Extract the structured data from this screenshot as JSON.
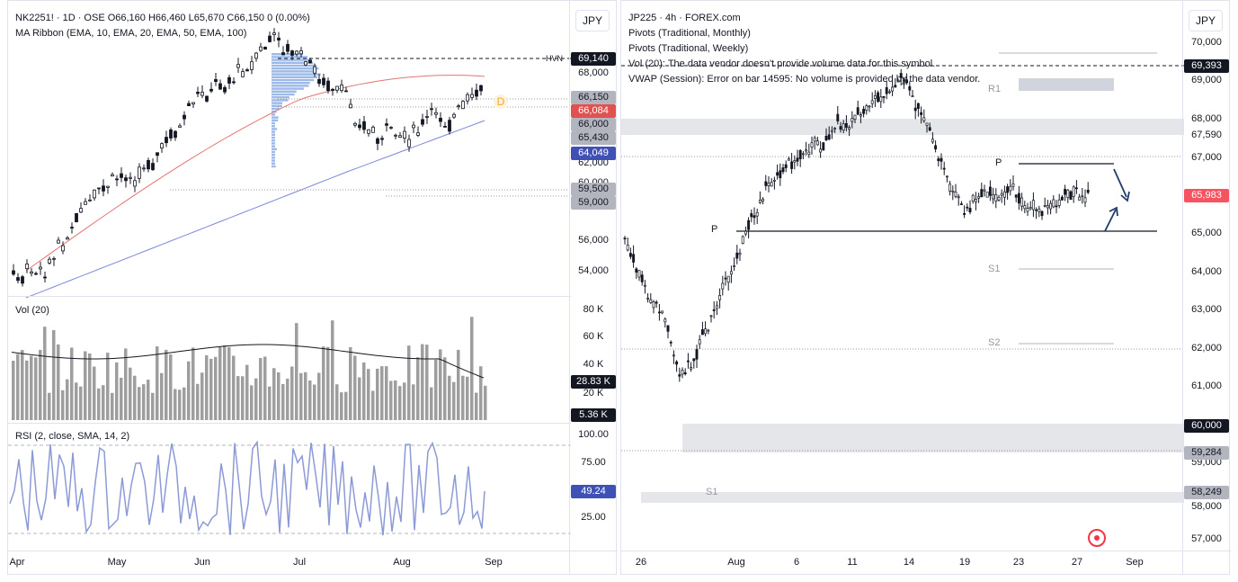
{
  "left": {
    "legend": {
      "symbol_line": "NK2251! · 1D · OSE  O66,160  H66,460  L65,670  C66,150  0 (0.00%)",
      "ma_ribbon": "MA Ribbon (EMA, 10, EMA, 20, EMA, 50, EMA, 100)"
    },
    "currency": "JPY",
    "price_ticks": [
      "68,000",
      "62,000",
      "60,000",
      "56,000",
      "54,000"
    ],
    "price_tags": [
      {
        "text": "69,140",
        "bg": "#131722",
        "fg": "#ffffff"
      },
      {
        "text": "66,150",
        "bg": "#b2b5be",
        "fg": "#131722"
      },
      {
        "text": "66,084",
        "bg": "#e0514f",
        "fg": "#ffffff"
      },
      {
        "text": "66,000",
        "bg": "#b2b5be",
        "fg": "#131722"
      },
      {
        "text": "65,430",
        "bg": "#b2b5be",
        "fg": "#131722"
      },
      {
        "text": "64,049",
        "bg": "#3f51b5",
        "fg": "#ffffff"
      },
      {
        "text": "59,500",
        "bg": "#b2b5be",
        "fg": "#131722"
      },
      {
        "text": "59,000",
        "bg": "#b2b5be",
        "fg": "#131722"
      }
    ],
    "hvn_label": "HVN",
    "d_label": "D",
    "vol": {
      "title": "Vol (20)",
      "ticks": [
        "80 K",
        "60 K",
        "40 K",
        "20 K"
      ],
      "tag_ma": "28.83 K",
      "tag_vol": "5.36 K"
    },
    "rsi": {
      "title": "RSI (2, close, SMA, 14, 2)",
      "ticks": [
        "100.00",
        "75.00",
        "25.00"
      ],
      "tag": "49.24"
    },
    "x_labels": [
      "Apr",
      "May",
      "Jun",
      "Jul",
      "Aug",
      "Sep"
    ]
  },
  "right": {
    "legend": {
      "line1": "JP225 · 4h · FOREX.com",
      "line2": "Pivots (Traditional, Monthly)",
      "line3": "Pivots (Traditional, Weekly)",
      "line4": "Vol (20): The data vendor doesn't provide volume data for this symbol.",
      "line5": "VWAP (Session): Error on bar 14595: No volume is provided by the data vendor."
    },
    "currency": "JPY",
    "price_ticks": [
      "70,000",
      "69,000",
      "68,000",
      "67,590",
      "67,000",
      "65,000",
      "64,000",
      "63,000",
      "62,000",
      "61,000",
      "59,000",
      "58,000",
      "57,000"
    ],
    "price_tags": [
      {
        "text": "69,393",
        "bg": "#131722",
        "fg": "#ffffff"
      },
      {
        "text": "65,983",
        "bg": "#f7525f",
        "fg": "#ffffff"
      },
      {
        "text": "60,000",
        "bg": "#131722",
        "fg": "#ffffff"
      },
      {
        "text": "59,284",
        "bg": "#b2b5be",
        "fg": "#131722"
      },
      {
        "text": "58,249",
        "bg": "#b2b5be",
        "fg": "#131722"
      }
    ],
    "pivot_labels": {
      "r1": "R1",
      "p_weekly": "P",
      "s1": "S1",
      "s2": "S2",
      "p_monthly": "P",
      "s1_monthly": "S1"
    },
    "x_labels": [
      "26",
      "Aug",
      "6",
      "11",
      "14",
      "19",
      "23",
      "27",
      "Sep"
    ]
  },
  "colors": {
    "up": "#131722",
    "ema20": "#e57373",
    "ema100": "#7e88d8",
    "vol_bar": "#9e9e9e",
    "rsi": "#8c9ad6"
  }
}
